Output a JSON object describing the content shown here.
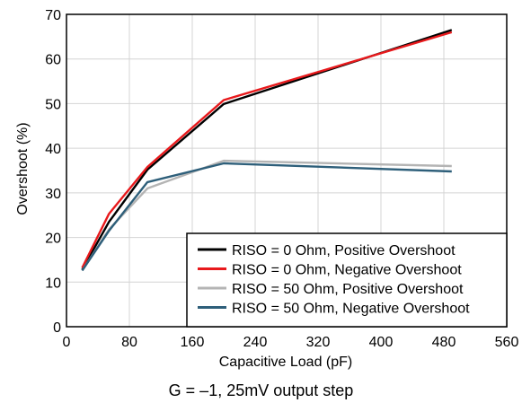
{
  "chart_data": {
    "type": "line",
    "title": "",
    "xlabel": "Capacitive Load (pF)",
    "ylabel": "Overshoot (%)",
    "xlim": [
      0,
      560
    ],
    "ylim": [
      0,
      70
    ],
    "xticks": [
      0,
      80,
      160,
      240,
      320,
      400,
      480,
      560
    ],
    "yticks": [
      0,
      10,
      20,
      30,
      40,
      50,
      60,
      70
    ],
    "grid": true,
    "legend_position": "bottom-right",
    "caption": "G = –1, 25mV output step",
    "series": [
      {
        "name": "RISO = 0 Ohm, Positive Overshoot",
        "color": "#000000",
        "x": [
          20,
          54,
          103,
          200,
          490
        ],
        "y": [
          12.8,
          23.5,
          35.2,
          49.9,
          66.5
        ]
      },
      {
        "name": "RISO = 0 Ohm, Negative Overshoot",
        "color": "#e8191c",
        "x": [
          20,
          54,
          103,
          200,
          490
        ],
        "y": [
          13.2,
          25.3,
          35.8,
          50.8,
          66.0
        ]
      },
      {
        "name": "RISO = 50 Ohm, Positive Overshoot",
        "color": "#b4b4b4",
        "x": [
          20,
          54,
          103,
          200,
          490
        ],
        "y": [
          12.6,
          21.8,
          31.0,
          37.2,
          36.0
        ]
      },
      {
        "name": "RISO = 50 Ohm, Negative Overshoot",
        "color": "#2e5f7a",
        "x": [
          20,
          54,
          103,
          200,
          490
        ],
        "y": [
          12.6,
          21.5,
          32.4,
          36.6,
          34.8
        ]
      }
    ]
  }
}
